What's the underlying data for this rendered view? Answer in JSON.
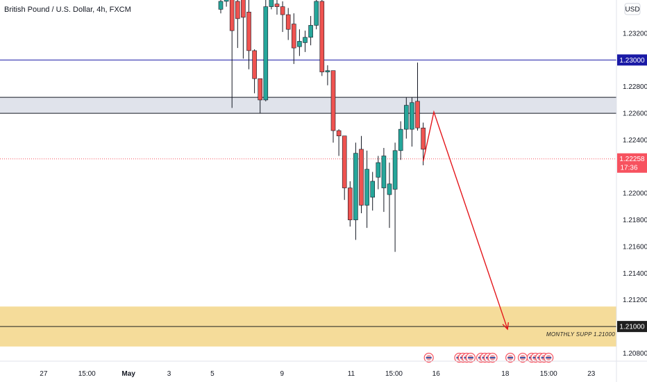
{
  "chart_data": {
    "type": "candlestick",
    "title": "British Pound / U.S. Dollar, 4h, FXCM",
    "currency_label": "USD",
    "ylim": [
      1.2074,
      1.2345
    ],
    "yticks": [
      "1.20800",
      "1.21200",
      "1.21400",
      "1.21600",
      "1.21800",
      "1.22000",
      "1.22400",
      "1.22600",
      "1.22800",
      "1.23200"
    ],
    "xticks": [
      {
        "label": "27",
        "i": -31.5
      },
      {
        "label": "15:00",
        "i": -23.8
      },
      {
        "label": "May",
        "i": -16.4
      },
      {
        "label": "3",
        "i": -9.2
      },
      {
        "label": "5",
        "i": -1.5
      },
      {
        "label": "9",
        "i": 10.9
      },
      {
        "label": "11",
        "i": 23.2
      },
      {
        "label": "15:00",
        "i": 30.8
      },
      {
        "label": "16",
        "i": 38.3
      },
      {
        "label": "18",
        "i": 50.6
      },
      {
        "label": "15:00",
        "i": 58.3
      },
      {
        "label": "23",
        "i": 65.9
      }
    ],
    "candles": [
      {
        "i": 0,
        "o": 1.2338,
        "h": 1.2351,
        "l": 1.2335,
        "c": 1.2344
      },
      {
        "i": 1,
        "o": 1.2344,
        "h": 1.2353,
        "l": 1.234,
        "c": 1.2349
      },
      {
        "i": 2,
        "o": 1.2349,
        "h": 1.2354,
        "l": 1.2264,
        "c": 1.2322
      },
      {
        "i": 3,
        "o": 1.2344,
        "h": 1.2352,
        "l": 1.2309,
        "c": 1.2331
      },
      {
        "i": 4,
        "o": 1.2349,
        "h": 1.2352,
        "l": 1.2301,
        "c": 1.2332
      },
      {
        "i": 5,
        "o": 1.2336,
        "h": 1.2352,
        "l": 1.2293,
        "c": 1.2307
      },
      {
        "i": 6,
        "o": 1.2307,
        "h": 1.2308,
        "l": 1.2275,
        "c": 1.2286
      },
      {
        "i": 7,
        "o": 1.2286,
        "h": 1.2286,
        "l": 1.226,
        "c": 1.227
      },
      {
        "i": 8,
        "o": 1.227,
        "h": 1.2354,
        "l": 1.2269,
        "c": 1.234
      },
      {
        "i": 9,
        "o": 1.234,
        "h": 1.2353,
        "l": 1.2338,
        "c": 1.2346
      },
      {
        "i": 10,
        "o": 1.2342,
        "h": 1.2352,
        "l": 1.2334,
        "c": 1.234
      },
      {
        "i": 11,
        "o": 1.234,
        "h": 1.2344,
        "l": 1.2321,
        "c": 1.2334
      },
      {
        "i": 12,
        "o": 1.2334,
        "h": 1.2339,
        "l": 1.2315,
        "c": 1.2323
      },
      {
        "i": 13,
        "o": 1.2327,
        "h": 1.2335,
        "l": 1.2297,
        "c": 1.2309
      },
      {
        "i": 14,
        "o": 1.231,
        "h": 1.2323,
        "l": 1.2303,
        "c": 1.2314
      },
      {
        "i": 15,
        "o": 1.2313,
        "h": 1.2322,
        "l": 1.2306,
        "c": 1.2317
      },
      {
        "i": 16,
        "o": 1.2317,
        "h": 1.2333,
        "l": 1.2311,
        "c": 1.2326
      },
      {
        "i": 17,
        "o": 1.2326,
        "h": 1.2352,
        "l": 1.2323,
        "c": 1.2344
      },
      {
        "i": 18,
        "o": 1.2344,
        "h": 1.2352,
        "l": 1.2288,
        "c": 1.2291
      },
      {
        "i": 19,
        "o": 1.2291,
        "h": 1.2296,
        "l": 1.2281,
        "c": 1.2292
      },
      {
        "i": 20,
        "o": 1.2292,
        "h": 1.2292,
        "l": 1.2238,
        "c": 1.2247
      },
      {
        "i": 21,
        "o": 1.2247,
        "h": 1.2248,
        "l": 1.2228,
        "c": 1.2243
      },
      {
        "i": 22,
        "o": 1.2243,
        "h": 1.2243,
        "l": 1.2195,
        "c": 1.2204
      },
      {
        "i": 23,
        "o": 1.2204,
        "h": 1.2209,
        "l": 1.2175,
        "c": 1.218
      },
      {
        "i": 24,
        "o": 1.218,
        "h": 1.2238,
        "l": 1.2165,
        "c": 1.223
      },
      {
        "i": 25,
        "o": 1.2233,
        "h": 1.2243,
        "l": 1.2185,
        "c": 1.2191
      },
      {
        "i": 26,
        "o": 1.2191,
        "h": 1.2232,
        "l": 1.2174,
        "c": 1.2218
      },
      {
        "i": 27,
        "o": 1.2197,
        "h": 1.2216,
        "l": 1.2187,
        "c": 1.2209
      },
      {
        "i": 28,
        "o": 1.2212,
        "h": 1.2228,
        "l": 1.2203,
        "c": 1.2223
      },
      {
        "i": 29,
        "o": 1.2204,
        "h": 1.2234,
        "l": 1.2186,
        "c": 1.2228
      },
      {
        "i": 30,
        "o": 1.2199,
        "h": 1.2223,
        "l": 1.2174,
        "c": 1.2207
      },
      {
        "i": 31,
        "o": 1.2203,
        "h": 1.2238,
        "l": 1.2156,
        "c": 1.2232
      },
      {
        "i": 32,
        "o": 1.2232,
        "h": 1.2254,
        "l": 1.2225,
        "c": 1.2248
      },
      {
        "i": 33,
        "o": 1.2248,
        "h": 1.2272,
        "l": 1.2241,
        "c": 1.2266
      },
      {
        "i": 34,
        "o": 1.2248,
        "h": 1.2272,
        "l": 1.2235,
        "c": 1.2268
      },
      {
        "i": 35,
        "o": 1.2269,
        "h": 1.2298,
        "l": 1.2247,
        "c": 1.2249
      },
      {
        "i": 36,
        "o": 1.2249,
        "h": 1.2253,
        "l": 1.2221,
        "c": 1.2233
      }
    ],
    "horizontal_lines": [
      {
        "price": 1.23,
        "color": "#1a1aa6",
        "style": "solid",
        "label": "1.23000"
      },
      {
        "price": 1.21,
        "color": "#1f1f1f",
        "style": "solid",
        "label": "1.21000"
      },
      {
        "price": 1.22258,
        "color": "#f7525f",
        "style": "dotted",
        "label": "1.22258",
        "sublabel": "17:36"
      }
    ],
    "zones": [
      {
        "top": 1.2272,
        "bottom": 1.226,
        "fill": "#e0e3eb"
      },
      {
        "top": 1.2115,
        "bottom": 1.2085,
        "fill": "#f5dc9a"
      }
    ],
    "projection": [
      {
        "i": 36.0,
        "p": 1.2224
      },
      {
        "i": 37.9,
        "p": 1.2261
      },
      {
        "i": 51.0,
        "p": 1.2098
      }
    ],
    "annotation": "MONTHLY SUPP 1.21000",
    "event_markers": [
      {
        "i": 37.0,
        "count": 1
      },
      {
        "i": 42.4,
        "count": 4
      },
      {
        "i": 46.3,
        "count": 4
      },
      {
        "i": 51.5,
        "count": 1
      },
      {
        "i": 53.7,
        "count": 1
      },
      {
        "i": 55.3,
        "count": 2
      },
      {
        "i": 56.8,
        "count": 2
      },
      {
        "i": 58.3,
        "count": 1
      }
    ],
    "up_color": "#26a69a",
    "down_color": "#ef5350"
  }
}
